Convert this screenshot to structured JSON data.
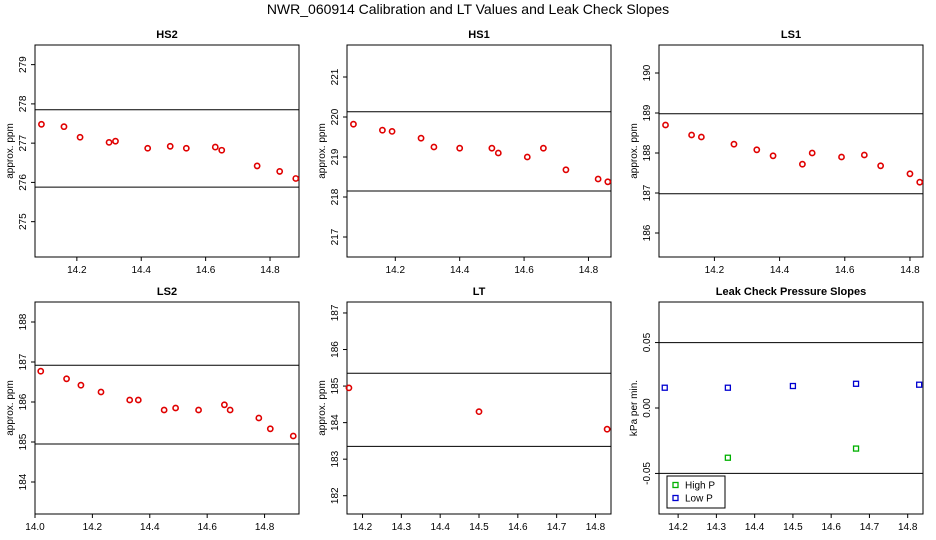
{
  "figure": {
    "title": "NWR_060914  Calibration and LT Values and Leak Check Slopes"
  },
  "chart_data": [
    {
      "type": "scatter",
      "title": "HS2",
      "ylabel": "approx. ppm",
      "xlim": [
        14.07,
        14.89
      ],
      "ylim": [
        274.1,
        279.5
      ],
      "xticks": [
        14.2,
        14.4,
        14.6,
        14.8
      ],
      "yticks": [
        275,
        276,
        277,
        278,
        279
      ],
      "hlines": [
        277.85,
        275.88
      ],
      "series": [
        {
          "color": "#e00000",
          "marker": "circle",
          "x": [
            14.09,
            14.16,
            14.21,
            14.3,
            14.32,
            14.42,
            14.49,
            14.54,
            14.63,
            14.65,
            14.76,
            14.83,
            14.88
          ],
          "y": [
            277.48,
            277.42,
            277.15,
            277.02,
            277.05,
            276.87,
            276.92,
            276.87,
            276.9,
            276.82,
            276.42,
            276.28,
            276.1
          ]
        }
      ]
    },
    {
      "type": "scatter",
      "title": "HS1",
      "ylabel": "approx. ppm",
      "xlim": [
        14.05,
        14.87
      ],
      "ylim": [
        216.5,
        221.8
      ],
      "xticks": [
        14.2,
        14.4,
        14.6,
        14.8
      ],
      "yticks": [
        217,
        218,
        219,
        220,
        221
      ],
      "hlines": [
        220.13,
        218.15
      ],
      "series": [
        {
          "color": "#e00000",
          "marker": "circle",
          "x": [
            14.07,
            14.16,
            14.19,
            14.28,
            14.32,
            14.4,
            14.5,
            14.52,
            14.61,
            14.66,
            14.73,
            14.83,
            14.86
          ],
          "y": [
            219.82,
            219.67,
            219.64,
            219.47,
            219.25,
            219.22,
            219.22,
            219.1,
            219.0,
            219.22,
            218.68,
            218.45,
            218.38
          ]
        }
      ]
    },
    {
      "type": "scatter",
      "title": "LS1",
      "ylabel": "approx. ppm",
      "xlim": [
        14.03,
        14.84
      ],
      "ylim": [
        185.4,
        190.7
      ],
      "xticks": [
        14.2,
        14.4,
        14.6,
        14.8
      ],
      "yticks": [
        186,
        187,
        188,
        189,
        190
      ],
      "hlines": [
        188.98,
        186.98
      ],
      "series": [
        {
          "color": "#e00000",
          "marker": "circle",
          "x": [
            14.05,
            14.13,
            14.16,
            14.26,
            14.33,
            14.38,
            14.47,
            14.5,
            14.59,
            14.66,
            14.71,
            14.8,
            14.83
          ],
          "y": [
            188.7,
            188.45,
            188.4,
            188.22,
            188.08,
            187.93,
            187.72,
            188.0,
            187.9,
            187.95,
            187.68,
            187.48,
            187.27
          ]
        }
      ]
    },
    {
      "type": "scatter",
      "title": "LS2",
      "ylabel": "approx. ppm",
      "xlim": [
        14.0,
        14.92
      ],
      "ylim": [
        183.2,
        188.5
      ],
      "xticks": [
        14.0,
        14.2,
        14.4,
        14.6,
        14.8
      ],
      "yticks": [
        184,
        185,
        186,
        187,
        188
      ],
      "hlines": [
        186.92,
        184.95
      ],
      "series": [
        {
          "color": "#e00000",
          "marker": "circle",
          "x": [
            14.02,
            14.11,
            14.16,
            14.23,
            14.33,
            14.36,
            14.45,
            14.49,
            14.57,
            14.66,
            14.68,
            14.78,
            14.82,
            14.9
          ],
          "y": [
            186.77,
            186.58,
            186.42,
            186.25,
            186.05,
            186.05,
            185.8,
            185.85,
            185.8,
            185.93,
            185.8,
            185.6,
            185.33,
            185.15
          ]
        }
      ]
    },
    {
      "type": "scatter",
      "title": "LT",
      "ylabel": "approx. ppm",
      "xlim": [
        14.16,
        14.84
      ],
      "ylim": [
        181.5,
        187.3
      ],
      "xticks": [
        14.2,
        14.3,
        14.4,
        14.5,
        14.6,
        14.7,
        14.8
      ],
      "yticks": [
        182,
        183,
        184,
        185,
        186,
        187
      ],
      "hlines": [
        185.35,
        183.35
      ],
      "series": [
        {
          "color": "#e00000",
          "marker": "circle",
          "x": [
            14.165,
            14.5,
            14.83
          ],
          "y": [
            184.95,
            184.3,
            183.82
          ]
        }
      ]
    },
    {
      "type": "scatter",
      "title": "Leak Check Pressure Slopes",
      "ylabel": "kPa per min.",
      "xlim": [
        14.15,
        14.84
      ],
      "ylim": [
        -0.081,
        0.081
      ],
      "xticks": [
        14.2,
        14.3,
        14.4,
        14.5,
        14.6,
        14.7,
        14.8
      ],
      "yticks": [
        -0.05,
        0.0,
        0.05
      ],
      "hlines": [
        0.05,
        -0.05
      ],
      "legend": "bottom-left",
      "series": [
        {
          "name": "High P",
          "color": "#00b000",
          "marker": "square",
          "x": [
            14.33,
            14.665
          ],
          "y": [
            -0.038,
            -0.031
          ]
        },
        {
          "name": "Low P",
          "color": "#0000d0",
          "marker": "square",
          "x": [
            14.165,
            14.33,
            14.5,
            14.665,
            14.83
          ],
          "y": [
            0.0155,
            0.0155,
            0.0168,
            0.0185,
            0.0178
          ]
        }
      ]
    }
  ]
}
